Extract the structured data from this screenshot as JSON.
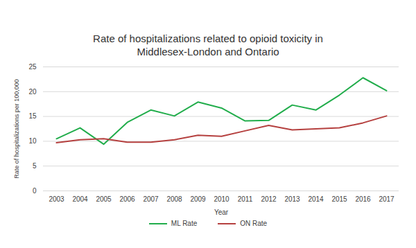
{
  "chart_data": {
    "type": "line",
    "title": "Rate of hospitalizations related to opioid toxicity in Middlesex-London and Ontario",
    "x_label": "Year",
    "y_label": "Rate of hospitalizations per 100,000",
    "categories": [
      "2003",
      "2004",
      "2005",
      "2006",
      "2007",
      "2008",
      "2009",
      "2010",
      "2011",
      "2012",
      "2013",
      "2014",
      "2015",
      "2016",
      "2017"
    ],
    "series": [
      {
        "name": "ML Rate",
        "color": "#21ad4b",
        "values": [
          10.5,
          12.7,
          9.4,
          13.8,
          16.3,
          15.1,
          17.9,
          16.7,
          14.1,
          14.2,
          17.3,
          16.3,
          19.3,
          22.8,
          20.2
        ]
      },
      {
        "name": "ON Rate",
        "color": "#b5403f",
        "values": [
          9.7,
          10.3,
          10.5,
          9.8,
          9.8,
          10.3,
          11.2,
          11.0,
          12.1,
          13.2,
          12.3,
          12.5,
          12.7,
          13.7,
          15.1
        ]
      }
    ],
    "ylim": [
      0,
      25
    ],
    "yticks": [
      0,
      5,
      10,
      15,
      20,
      25
    ],
    "grid": true,
    "legend": "bottom"
  }
}
